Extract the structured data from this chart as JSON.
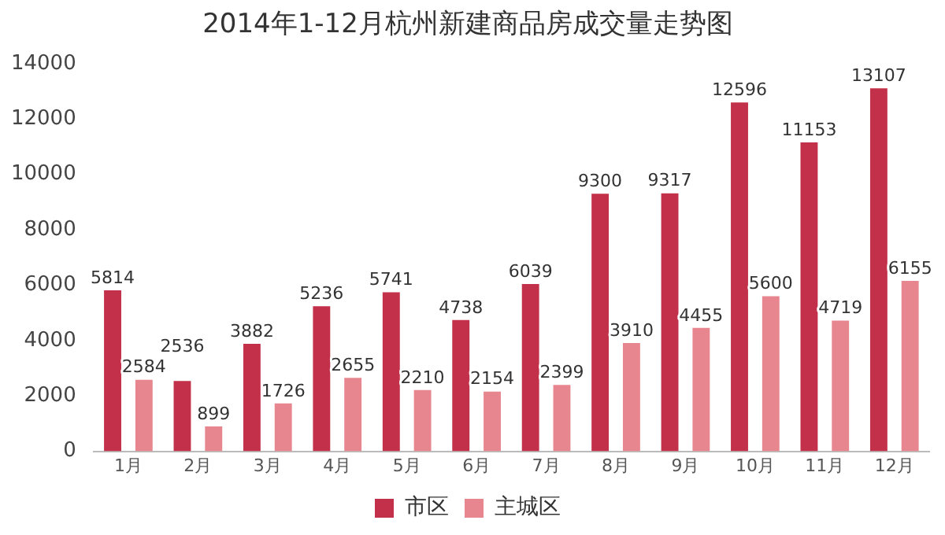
{
  "chart_data": {
    "type": "bar",
    "title": "2014年1-12月杭州新建商品房成交量走势图",
    "categories": [
      "1月",
      "2月",
      "3月",
      "4月",
      "5月",
      "6月",
      "7月",
      "8月",
      "9月",
      "10月",
      "11月",
      "12月"
    ],
    "series": [
      {
        "name": "市区",
        "color": "#c33049",
        "values": [
          5814,
          2536,
          3882,
          5236,
          5741,
          4738,
          6039,
          9300,
          9317,
          12596,
          11153,
          13107
        ]
      },
      {
        "name": "主城区",
        "color": "#e8868f",
        "values": [
          2584,
          899,
          1726,
          2655,
          2210,
          2154,
          2399,
          3910,
          4455,
          5600,
          4719,
          6155
        ]
      }
    ],
    "ylim": [
      0,
      14000
    ],
    "yticks": [
      0,
      2000,
      4000,
      6000,
      8000,
      10000,
      12000,
      14000
    ],
    "grid": false,
    "legend": "bottom",
    "data_labels": true
  }
}
